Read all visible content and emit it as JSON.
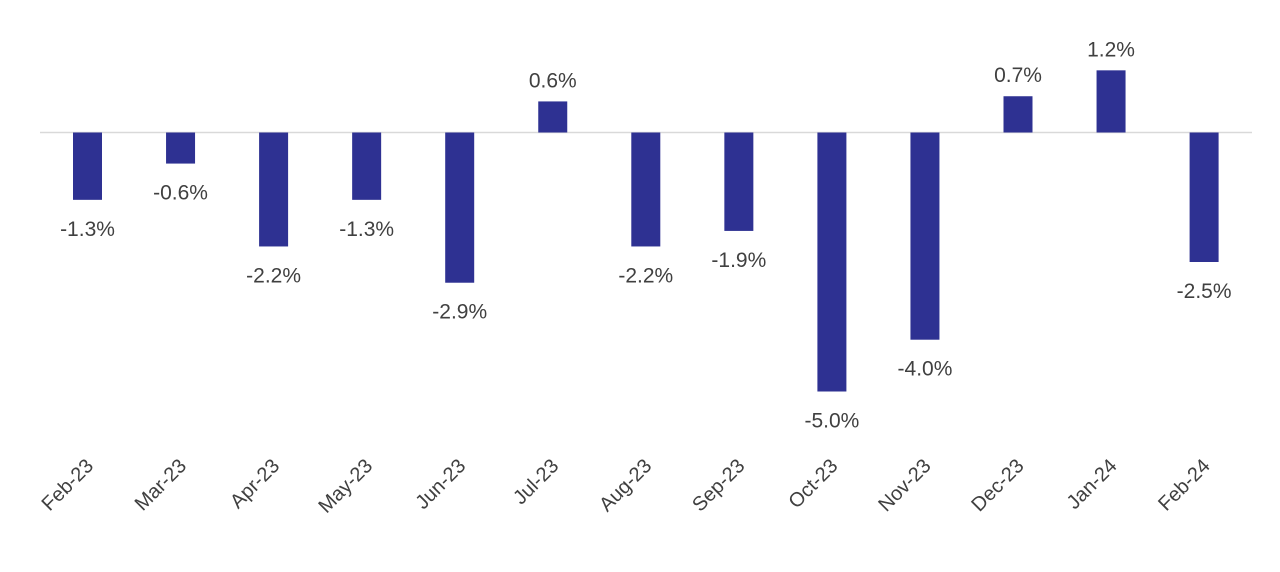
{
  "chart_data": {
    "type": "bar",
    "title": "",
    "xlabel": "",
    "ylabel": "",
    "categories": [
      "Feb-23",
      "Mar-23",
      "Apr-23",
      "May-23",
      "Jun-23",
      "Jul-23",
      "Aug-23",
      "Sep-23",
      "Oct-23",
      "Nov-23",
      "Dec-23",
      "Jan-24",
      "Feb-24"
    ],
    "values": [
      -1.3,
      -0.6,
      -2.2,
      -1.3,
      -2.9,
      0.6,
      -2.2,
      -1.9,
      -5.0,
      -4.0,
      0.7,
      1.2,
      -2.5
    ],
    "labels": [
      "-1.3%",
      "-0.6%",
      "-2.2%",
      "-1.3%",
      "-2.9%",
      "0.6%",
      "-2.2%",
      "-1.9%",
      "-5.0%",
      "-4.0%",
      "0.7%",
      "1.2%",
      "-2.5%"
    ],
    "ylim": [
      -5.0,
      1.2
    ],
    "grid": false,
    "legend": "none",
    "colors": {
      "bar": "#2E3192",
      "axis": "#D9D9D9"
    }
  }
}
